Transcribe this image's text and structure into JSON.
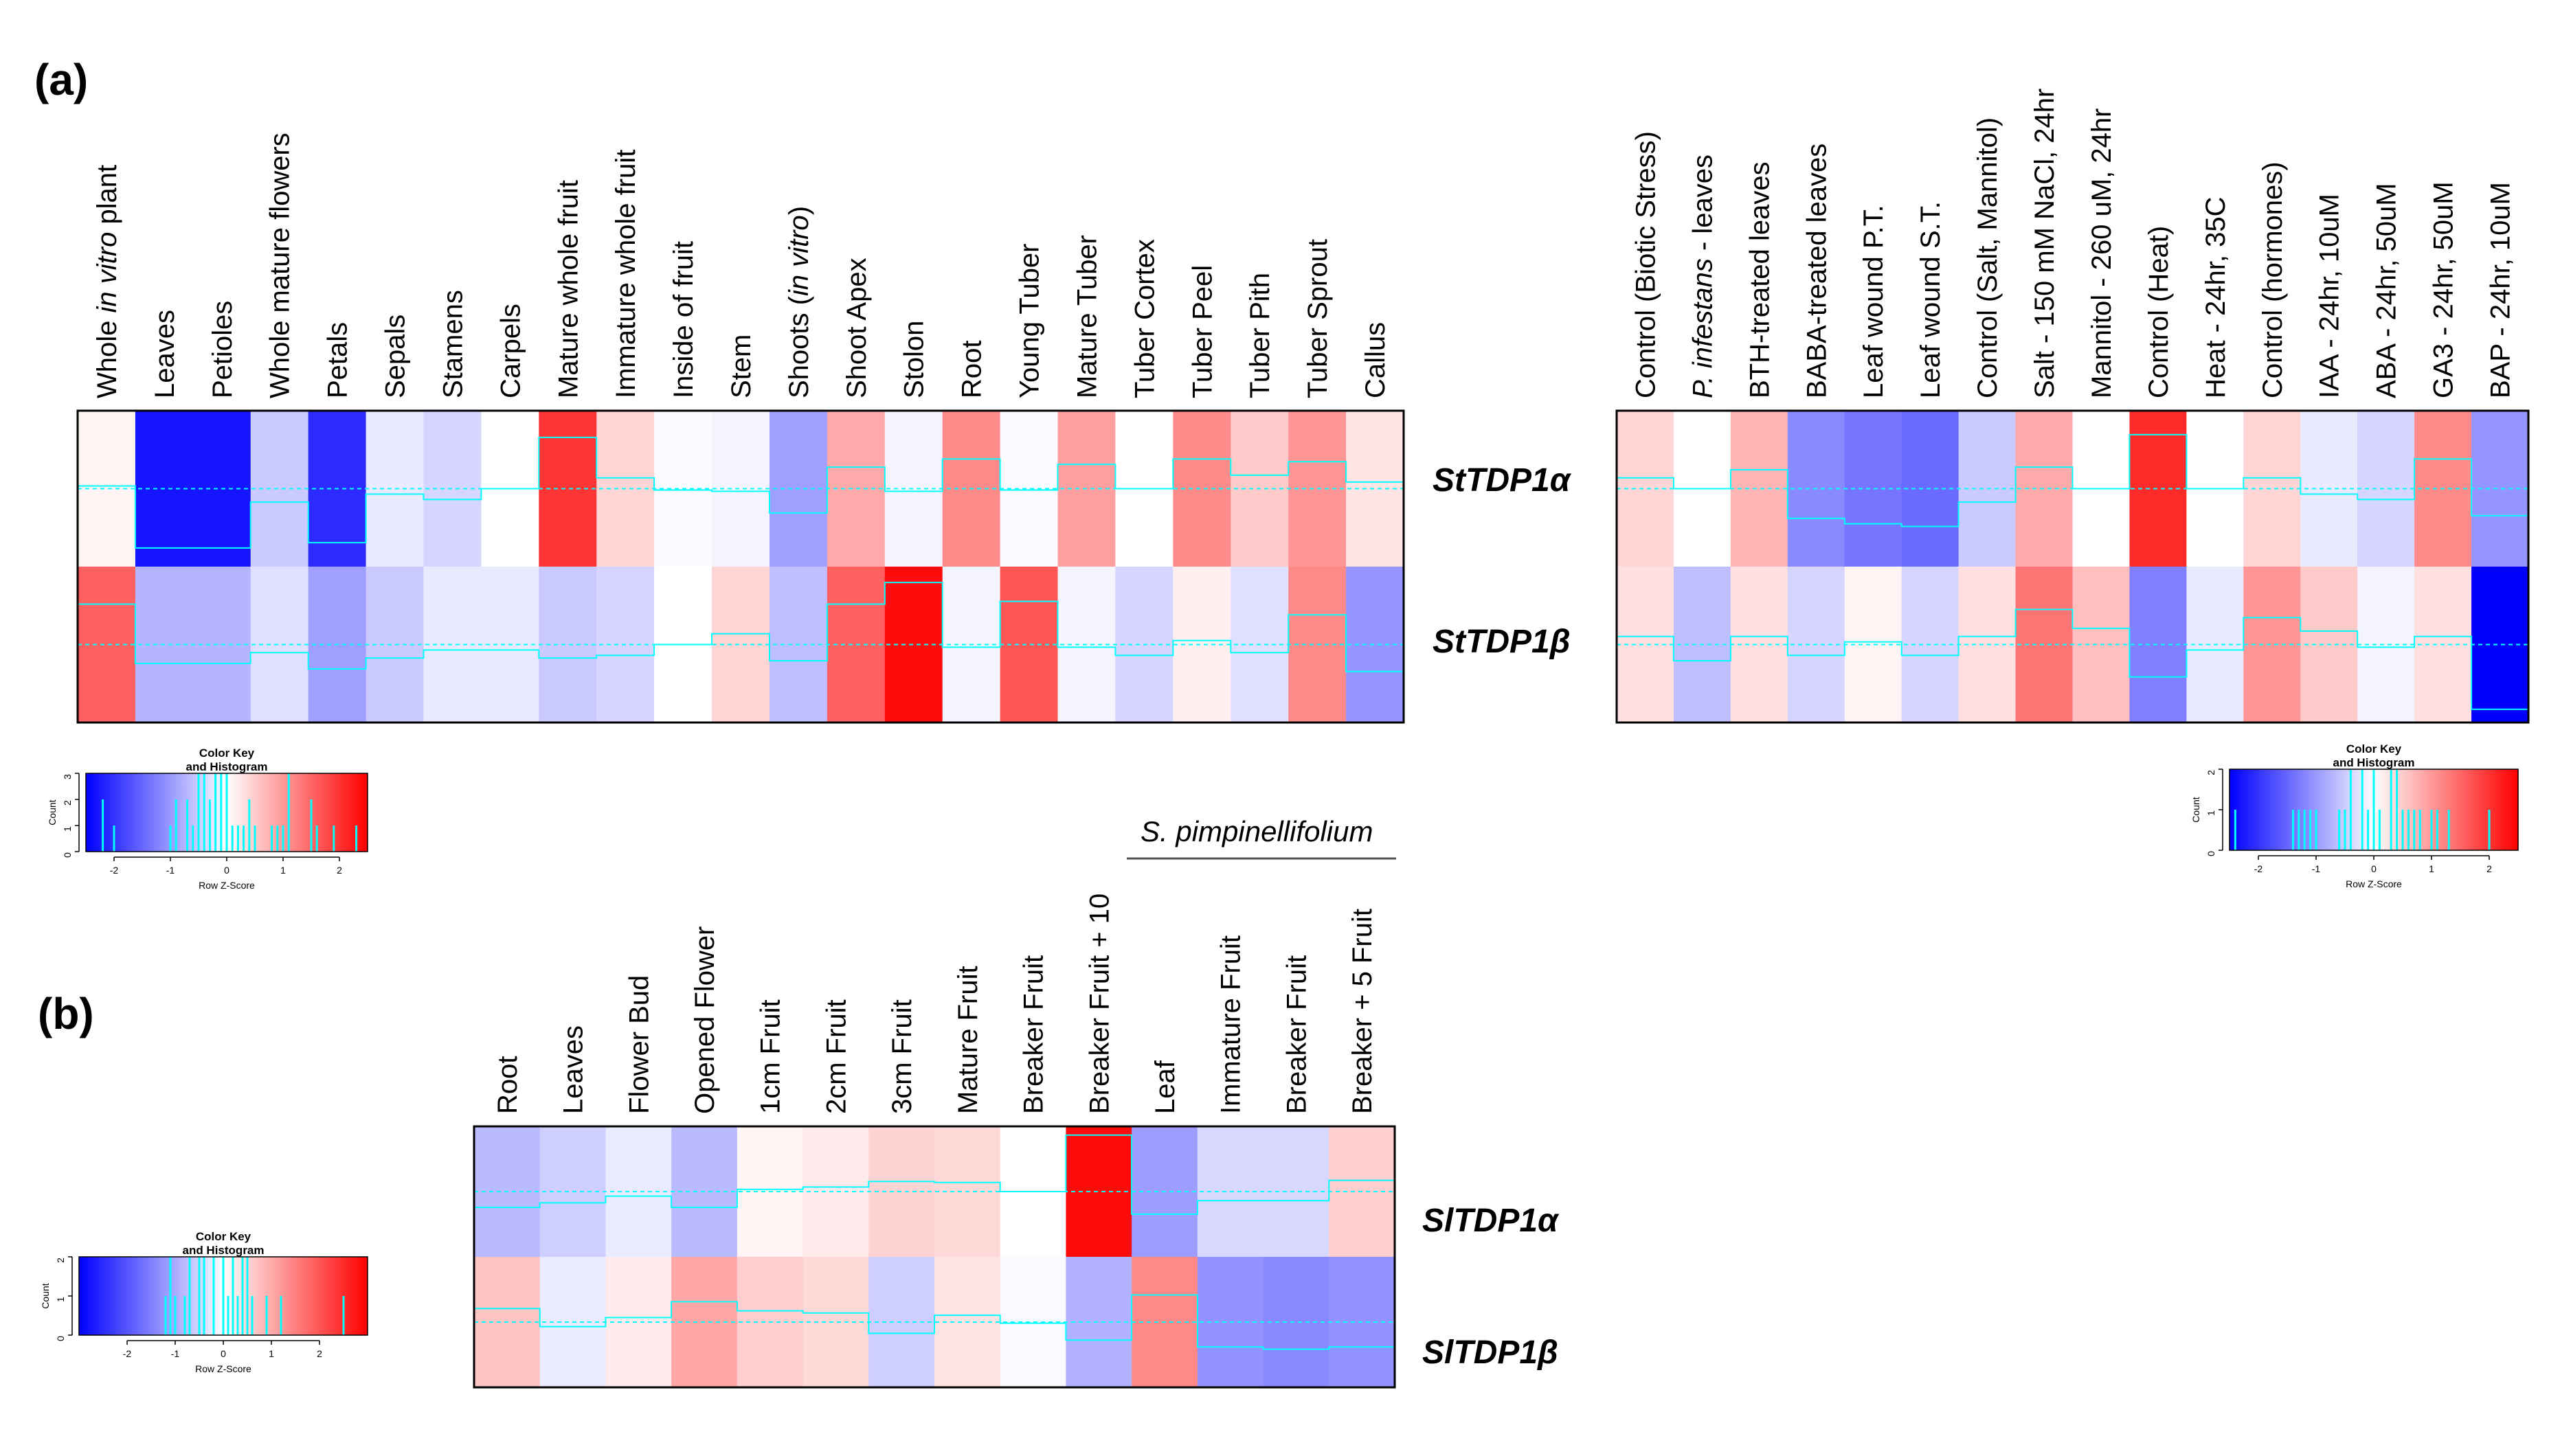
{
  "figure": {
    "panel_a_label": "(a)",
    "panel_b_label": "(b)",
    "species_label": "S. pimpinellifolium",
    "color_key": {
      "title_line1": "Color Key",
      "title_line2": "and Histogram",
      "ylabel": "Count",
      "xlabel": "Row Z-Score",
      "low_color": "#0000FF",
      "mid_color": "#FFFFFF",
      "high_color": "#FF0000",
      "trace_color": "#00FFFF"
    }
  },
  "chart_data": [
    {
      "type": "heatmap",
      "id": "a-left",
      "title": "(a)",
      "columns": [
        {
          "parts": [
            [
              "Whole ",
              false
            ],
            [
              "in vitro",
              true
            ],
            [
              " plant",
              false
            ]
          ]
        },
        {
          "parts": [
            [
              "Leaves",
              false
            ]
          ]
        },
        {
          "parts": [
            [
              "Petioles",
              false
            ]
          ]
        },
        {
          "parts": [
            [
              "Whole mature flowers",
              false
            ]
          ]
        },
        {
          "parts": [
            [
              "Petals",
              false
            ]
          ]
        },
        {
          "parts": [
            [
              "Sepals",
              false
            ]
          ]
        },
        {
          "parts": [
            [
              "Stamens",
              false
            ]
          ]
        },
        {
          "parts": [
            [
              "Carpels",
              false
            ]
          ]
        },
        {
          "parts": [
            [
              "Mature whole fruit",
              false
            ]
          ]
        },
        {
          "parts": [
            [
              "Immature whole fruit",
              false
            ]
          ]
        },
        {
          "parts": [
            [
              "Inside of fruit",
              false
            ]
          ]
        },
        {
          "parts": [
            [
              "Stem",
              false
            ]
          ]
        },
        {
          "parts": [
            [
              "Shoots (",
              false
            ],
            [
              "in vitro",
              true
            ],
            [
              ")",
              false
            ]
          ]
        },
        {
          "parts": [
            [
              "Shoot Apex",
              false
            ]
          ]
        },
        {
          "parts": [
            [
              "Stolon",
              false
            ]
          ]
        },
        {
          "parts": [
            [
              "Root",
              false
            ]
          ]
        },
        {
          "parts": [
            [
              "Young Tuber",
              false
            ]
          ]
        },
        {
          "parts": [
            [
              "Mature Tuber",
              false
            ]
          ]
        },
        {
          "parts": [
            [
              "Tuber Cortex",
              false
            ]
          ]
        },
        {
          "parts": [
            [
              "Tuber Peel",
              false
            ]
          ]
        },
        {
          "parts": [
            [
              "Tuber Pith",
              false
            ]
          ]
        },
        {
          "parts": [
            [
              "Tuber Sprout",
              false
            ]
          ]
        },
        {
          "parts": [
            [
              "Callus",
              false
            ]
          ]
        }
      ],
      "rows": [
        "StTDP1α",
        "StTDP1β"
      ],
      "values": [
        [
          0.1,
          -2.2,
          -2.2,
          -0.5,
          -2.0,
          -0.2,
          -0.4,
          0.0,
          1.9,
          0.4,
          -0.05,
          -0.1,
          -0.9,
          0.8,
          -0.1,
          1.1,
          -0.05,
          0.9,
          0.0,
          1.1,
          0.5,
          1.0,
          0.25
        ],
        [
          1.5,
          -0.7,
          -0.7,
          -0.3,
          -0.9,
          -0.5,
          -0.2,
          -0.2,
          -0.5,
          -0.4,
          0.0,
          0.4,
          -0.6,
          1.5,
          2.3,
          -0.1,
          1.6,
          -0.1,
          -0.4,
          0.15,
          -0.3,
          1.1,
          -1.0
        ]
      ],
      "color_key": {
        "xlim": [
          -2.5,
          2.5
        ],
        "xticks": [
          -2,
          -1,
          0,
          1,
          2
        ],
        "ylim": [
          0,
          3
        ],
        "yticks": [
          0,
          1,
          2,
          3
        ]
      }
    },
    {
      "type": "heatmap",
      "id": "a-right",
      "columns": [
        {
          "parts": [
            [
              "Control (Biotic Stress)",
              false
            ]
          ]
        },
        {
          "parts": [
            [
              "P. infestans",
              true
            ],
            [
              " - leaves",
              false
            ]
          ]
        },
        {
          "parts": [
            [
              "BTH-treated leaves",
              false
            ]
          ]
        },
        {
          "parts": [
            [
              "BABA-treated leaves",
              false
            ]
          ]
        },
        {
          "parts": [
            [
              "Leaf wound P.T.",
              false
            ]
          ]
        },
        {
          "parts": [
            [
              "Leaf wound S.T.",
              false
            ]
          ]
        },
        {
          "parts": [
            [
              "Control (Salt, Mannitol)",
              false
            ]
          ]
        },
        {
          "parts": [
            [
              "Salt - 150 mM NaCl, 24hr",
              false
            ]
          ]
        },
        {
          "parts": [
            [
              "Mannitol - 260 uM, 24hr",
              false
            ]
          ]
        },
        {
          "parts": [
            [
              "Control (Heat)",
              false
            ]
          ]
        },
        {
          "parts": [
            [
              "Heat - 24hr, 35C",
              false
            ]
          ]
        },
        {
          "parts": [
            [
              "Control (hormones)",
              false
            ]
          ]
        },
        {
          "parts": [
            [
              "IAA - 24hr, 10uM",
              false
            ]
          ]
        },
        {
          "parts": [
            [
              "ABA - 24hr, 50uM",
              false
            ]
          ]
        },
        {
          "parts": [
            [
              "GA3 - 24hr, 50uM",
              false
            ]
          ]
        },
        {
          "parts": [
            [
              "BAP - 24hr, 10uM",
              false
            ]
          ]
        }
      ],
      "rows": [
        "StTDP1α",
        "StTDP1β"
      ],
      "values": [
        [
          0.4,
          0.0,
          0.7,
          -1.1,
          -1.3,
          -1.4,
          -0.5,
          0.8,
          0.0,
          2.0,
          0.0,
          0.4,
          -0.2,
          -0.4,
          1.1,
          -1.0
        ],
        [
          0.3,
          -0.6,
          0.3,
          -0.4,
          0.1,
          -0.4,
          0.3,
          1.3,
          0.6,
          -1.2,
          -0.2,
          1.0,
          0.5,
          -0.1,
          0.3,
          -2.4
        ]
      ],
      "color_key": {
        "xlim": [
          -2.5,
          2.5
        ],
        "xticks": [
          -2,
          -1,
          0,
          1,
          2
        ],
        "ylim": [
          0,
          2
        ],
        "yticks": [
          0,
          1,
          2
        ]
      }
    },
    {
      "type": "heatmap",
      "id": "b",
      "title": "(b)",
      "columns": [
        {
          "parts": [
            [
              "Root",
              false
            ]
          ]
        },
        {
          "parts": [
            [
              "Leaves",
              false
            ]
          ]
        },
        {
          "parts": [
            [
              "Flower Bud",
              false
            ]
          ]
        },
        {
          "parts": [
            [
              "Opened Flower",
              false
            ]
          ]
        },
        {
          "parts": [
            [
              "1cm Fruit",
              false
            ]
          ]
        },
        {
          "parts": [
            [
              "2cm Fruit",
              false
            ]
          ]
        },
        {
          "parts": [
            [
              "3cm Fruit",
              false
            ]
          ]
        },
        {
          "parts": [
            [
              "Mature Fruit",
              false
            ]
          ]
        },
        {
          "parts": [
            [
              "Breaker Fruit",
              false
            ]
          ]
        },
        {
          "parts": [
            [
              "Breaker Fruit + 10",
              false
            ]
          ]
        },
        {
          "parts": [
            [
              "Leaf",
              false
            ]
          ]
        },
        {
          "parts": [
            [
              "Immature Fruit",
              false
            ]
          ]
        },
        {
          "parts": [
            [
              "Breaker Fruit",
              false
            ]
          ]
        },
        {
          "parts": [
            [
              "Breaker + 5 Fruit",
              false
            ]
          ]
        }
      ],
      "rows": [
        "SlTDP1α",
        "SlTDP1β"
      ],
      "values": [
        [
          -0.7,
          -0.5,
          -0.2,
          -0.7,
          0.1,
          0.2,
          0.45,
          0.4,
          0.0,
          2.5,
          -1.0,
          -0.4,
          -0.4,
          0.5
        ],
        [
          0.6,
          -0.2,
          0.2,
          0.9,
          0.5,
          0.4,
          -0.5,
          0.3,
          -0.05,
          -0.8,
          1.2,
          -1.1,
          -1.2,
          -1.1
        ]
      ],
      "species_span": "S. pimpinellifolium",
      "color_key": {
        "xlim": [
          -3,
          3
        ],
        "xticks": [
          -2,
          -1,
          0,
          1,
          2
        ],
        "ylim": [
          0,
          2
        ],
        "yticks": [
          0,
          1,
          2
        ]
      }
    }
  ]
}
